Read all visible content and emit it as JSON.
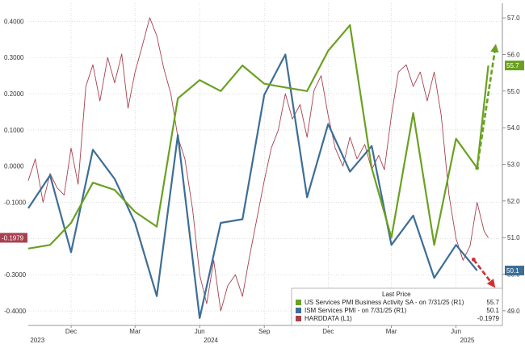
{
  "chart_data": {
    "type": "line",
    "title": "",
    "left_axis": {
      "range": [
        -0.44,
        0.45
      ],
      "ticks": [
        "0.4000",
        "0.3000",
        "0.2000",
        "0.1000",
        "0.0000",
        "-0.1000",
        "-0.2000",
        "-0.3000",
        "-0.4000"
      ],
      "tick_values": [
        0.4,
        0.3,
        0.2,
        0.1,
        0.0,
        -0.1,
        -0.2,
        -0.3,
        -0.4
      ]
    },
    "right_axis": {
      "range": [
        48.6,
        57.4
      ],
      "ticks": [
        "57.0",
        "56.0",
        "55.0",
        "54.0",
        "53.0",
        "52.0",
        "51.0",
        "50.0",
        "49.0"
      ],
      "tick_values": [
        57,
        56,
        55,
        54,
        53,
        52,
        51,
        50,
        49
      ]
    },
    "x_axis": {
      "range": [
        "2023-10-15",
        "2025-08-20"
      ],
      "month_ticks": [
        {
          "label": "Dec",
          "date": "2023-12-15"
        },
        {
          "label": "Mar",
          "date": "2024-03-15"
        },
        {
          "label": "Jun",
          "date": "2024-06-15"
        },
        {
          "label": "Sep",
          "date": "2024-09-15"
        },
        {
          "label": "Dec",
          "date": "2024-12-15"
        },
        {
          "label": "Mar",
          "date": "2025-03-15"
        },
        {
          "label": "Jun",
          "date": "2025-06-15"
        }
      ],
      "year_labels": [
        {
          "label": "2023",
          "date": "2023-10-28"
        },
        {
          "label": "2024",
          "date": "2024-07-01"
        },
        {
          "label": "2025",
          "date": "2025-07-01"
        }
      ]
    },
    "grid": true,
    "legend_placement": "bottom-right",
    "legend_title": "Last Price",
    "series": [
      {
        "name": "US Services PMI Business Activity SA  -  on 7/31/25  (R1)",
        "last": "55.7",
        "color": "#6aa121",
        "axis": "right",
        "points": [
          [
            "2023-10-15",
            50.7
          ],
          [
            "2023-11-15",
            50.8
          ],
          [
            "2023-12-15",
            51.4
          ],
          [
            "2024-01-15",
            52.5
          ],
          [
            "2024-02-15",
            52.3
          ],
          [
            "2024-03-15",
            51.7
          ],
          [
            "2024-04-15",
            51.3
          ],
          [
            "2024-05-15",
            54.8
          ],
          [
            "2024-06-15",
            55.3
          ],
          [
            "2024-07-15",
            55.0
          ],
          [
            "2024-08-15",
            55.7
          ],
          [
            "2024-09-15",
            55.2
          ],
          [
            "2024-10-15",
            55.1
          ],
          [
            "2024-11-15",
            55.0
          ],
          [
            "2024-12-15",
            56.1
          ],
          [
            "2025-01-15",
            56.8
          ],
          [
            "2025-02-15",
            52.9
          ],
          [
            "2025-03-15",
            51.0
          ],
          [
            "2025-04-15",
            54.4
          ],
          [
            "2025-05-15",
            50.8
          ],
          [
            "2025-06-15",
            53.7
          ],
          [
            "2025-07-15",
            52.9
          ],
          [
            "2025-07-31",
            55.7
          ]
        ]
      },
      {
        "name": "ISM Services PMI  -  on 7/31/25  (R1)",
        "last": "50.1",
        "color": "#3d6e96",
        "axis": "right",
        "points": [
          [
            "2023-10-15",
            51.8
          ],
          [
            "2023-11-15",
            52.7
          ],
          [
            "2023-12-15",
            50.6
          ],
          [
            "2024-01-15",
            53.4
          ],
          [
            "2024-02-15",
            52.6
          ],
          [
            "2024-03-15",
            51.4
          ],
          [
            "2024-04-15",
            49.4
          ],
          [
            "2024-05-15",
            53.8
          ],
          [
            "2024-06-15",
            48.8
          ],
          [
            "2024-07-15",
            51.4
          ],
          [
            "2024-08-15",
            51.5
          ],
          [
            "2024-09-15",
            54.9
          ],
          [
            "2024-10-15",
            56.0
          ],
          [
            "2024-11-15",
            52.1
          ],
          [
            "2024-12-15",
            54.1
          ],
          [
            "2025-01-15",
            52.8
          ],
          [
            "2025-02-15",
            53.5
          ],
          [
            "2025-03-15",
            50.8
          ],
          [
            "2025-04-15",
            51.6
          ],
          [
            "2025-05-15",
            49.9
          ],
          [
            "2025-06-15",
            50.8
          ],
          [
            "2025-07-15",
            50.1
          ]
        ]
      },
      {
        "name": "HARDDATA  (L1)",
        "last": "-0.1979",
        "color": "#a8404f",
        "axis": "left",
        "points": [
          [
            "2023-10-15",
            -0.04
          ],
          [
            "2023-10-25",
            0.02
          ],
          [
            "2023-11-05",
            -0.1
          ],
          [
            "2023-11-15",
            -0.02
          ],
          [
            "2023-11-25",
            -0.06
          ],
          [
            "2023-12-05",
            -0.08
          ],
          [
            "2023-12-15",
            0.05
          ],
          [
            "2023-12-25",
            -0.05
          ],
          [
            "2024-01-05",
            0.22
          ],
          [
            "2024-01-15",
            0.28
          ],
          [
            "2024-01-25",
            0.18
          ],
          [
            "2024-02-05",
            0.3
          ],
          [
            "2024-02-15",
            0.23
          ],
          [
            "2024-02-25",
            0.31
          ],
          [
            "2024-03-05",
            0.16
          ],
          [
            "2024-03-15",
            0.26
          ],
          [
            "2024-03-25",
            0.33
          ],
          [
            "2024-04-05",
            0.41
          ],
          [
            "2024-04-15",
            0.36
          ],
          [
            "2024-04-25",
            0.27
          ],
          [
            "2024-05-05",
            0.2
          ],
          [
            "2024-05-15",
            0.08
          ],
          [
            "2024-05-25",
            0.02
          ],
          [
            "2024-06-05",
            -0.12
          ],
          [
            "2024-06-15",
            -0.3
          ],
          [
            "2024-06-25",
            -0.38
          ],
          [
            "2024-07-05",
            -0.26
          ],
          [
            "2024-07-15",
            -0.4
          ],
          [
            "2024-07-25",
            -0.33
          ],
          [
            "2024-08-05",
            -0.3
          ],
          [
            "2024-08-15",
            -0.36
          ],
          [
            "2024-08-25",
            -0.25
          ],
          [
            "2024-09-05",
            -0.14
          ],
          [
            "2024-09-15",
            -0.04
          ],
          [
            "2024-09-25",
            0.05
          ],
          [
            "2024-10-05",
            0.1
          ],
          [
            "2024-10-15",
            0.2
          ],
          [
            "2024-10-25",
            0.13
          ],
          [
            "2024-11-05",
            0.17
          ],
          [
            "2024-11-15",
            0.08
          ],
          [
            "2024-11-25",
            0.21
          ],
          [
            "2024-12-05",
            0.25
          ],
          [
            "2024-12-15",
            0.14
          ],
          [
            "2024-12-25",
            0.05
          ],
          [
            "2025-01-05",
            0.0
          ],
          [
            "2025-01-15",
            0.08
          ],
          [
            "2025-01-25",
            0.02
          ],
          [
            "2025-02-05",
            0.06
          ],
          [
            "2025-02-15",
            -0.01
          ],
          [
            "2025-02-25",
            0.03
          ],
          [
            "2025-03-05",
            -0.01
          ],
          [
            "2025-03-15",
            0.14
          ],
          [
            "2025-03-25",
            0.26
          ],
          [
            "2025-04-05",
            0.28
          ],
          [
            "2025-04-15",
            0.22
          ],
          [
            "2025-04-25",
            0.26
          ],
          [
            "2025-05-05",
            0.18
          ],
          [
            "2025-05-15",
            0.26
          ],
          [
            "2025-05-25",
            0.14
          ],
          [
            "2025-06-05",
            -0.08
          ],
          [
            "2025-06-15",
            -0.2
          ],
          [
            "2025-06-25",
            -0.26
          ],
          [
            "2025-07-05",
            -0.22
          ],
          [
            "2025-07-15",
            -0.1
          ],
          [
            "2025-07-25",
            -0.18
          ],
          [
            "2025-07-31",
            -0.1979
          ]
        ]
      }
    ],
    "annotations": [
      {
        "type": "arrow",
        "style": "dashed",
        "color": "#6aa121",
        "from": [
          "2025-07-15",
          52.9
        ],
        "to": [
          "2025-08-10",
          56.2
        ],
        "axis": "right"
      },
      {
        "type": "arrow",
        "style": "dashed",
        "color": "#d42d2d",
        "from": [
          "2025-07-10",
          50.4
        ],
        "to": [
          "2025-08-07",
          49.7
        ],
        "axis": "right"
      }
    ]
  }
}
